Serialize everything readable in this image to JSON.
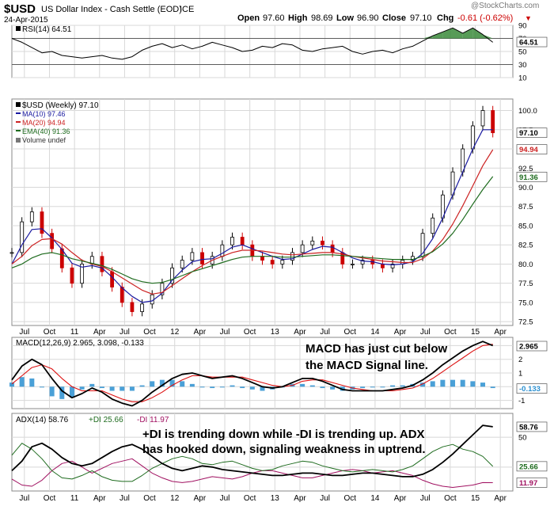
{
  "header": {
    "symbol": "$USD",
    "name": "US Dollar Index - Cash Settle (EOD)",
    "exchange": "ICE",
    "date": "24-Apr-2015",
    "watermark": "@StockCharts.com",
    "ohlc": {
      "open_label": "Open",
      "open": "97.60",
      "high_label": "High",
      "high": "98.69",
      "low_label": "Low",
      "low": "96.90",
      "close_label": "Close",
      "close": "97.10",
      "chg_label": "Chg",
      "chg": "-0.61 (-0.62%)",
      "chg_marker": "▼"
    }
  },
  "colors": {
    "price_up": "#000000",
    "price_down": "#cc0000",
    "ma10": "#1a1aa0",
    "ma20": "#cc2222",
    "ema40": "#1e6b1e",
    "macd": "#000000",
    "signal": "#dd1111",
    "histogram": "#2a8fd0",
    "rsi_fill": "#3a8a3a",
    "adx": "#000000",
    "plus_di": "#1e6b1e",
    "minus_di": "#a01060",
    "grid": "#d8d8d8",
    "annotation": "#000000"
  },
  "chart_data": [
    {
      "type": "line",
      "panel": "rsi",
      "legend": "RSI(14) 64.51",
      "y_ticks": [
        "90",
        "70",
        "50",
        "30",
        "10"
      ],
      "last_value_label": "64.51",
      "ylim": [
        10,
        90
      ],
      "overbought": 70,
      "oversold": 30,
      "x": [
        0,
        4,
        8,
        12,
        16,
        20,
        24,
        28,
        32,
        36,
        40,
        44,
        48,
        52,
        56,
        60,
        64,
        68,
        72,
        76,
        80,
        84,
        88,
        92,
        96,
        100,
        104,
        108,
        112,
        116,
        120,
        124,
        128,
        132,
        136,
        140,
        144,
        148,
        152,
        156,
        160,
        164,
        168,
        172,
        176,
        180,
        184,
        188,
        192
      ],
      "series": [
        {
          "values": [
            70,
            64,
            56,
            48,
            50,
            44,
            42,
            40,
            42,
            44,
            40,
            38,
            42,
            52,
            58,
            62,
            56,
            60,
            54,
            58,
            64,
            60,
            56,
            50,
            52,
            58,
            56,
            62,
            60,
            52,
            50,
            54,
            56,
            58,
            50,
            46,
            50,
            52,
            48,
            54,
            58,
            66,
            74,
            80,
            86,
            78,
            86,
            76,
            64
          ]
        }
      ]
    },
    {
      "type": "line",
      "panel": "price",
      "legend": {
        "title": "$USD (Weekly) 97.10",
        "items": [
          {
            "name": "MA(10) 97.46"
          },
          {
            "name": "MA(20) 94.94"
          },
          {
            "name": "EMA(40) 91.36"
          },
          {
            "name": "Volume undef"
          }
        ]
      },
      "y_ticks": [
        "100.0",
        "97.5",
        "95.0",
        "92.5",
        "90.0",
        "87.5",
        "85.0",
        "82.5",
        "80.0",
        "77.5",
        "75.0",
        "72.5"
      ],
      "badges": [
        "97.10",
        "94.94",
        "91.36"
      ],
      "ylim": [
        72.0,
        101.5
      ],
      "x": [
        0,
        4,
        8,
        12,
        16,
        20,
        24,
        28,
        32,
        36,
        40,
        44,
        48,
        52,
        56,
        60,
        64,
        68,
        72,
        76,
        80,
        84,
        88,
        92,
        96,
        100,
        104,
        108,
        112,
        116,
        120,
        124,
        128,
        132,
        136,
        140,
        144,
        148,
        152,
        156,
        160,
        164,
        168,
        172,
        176,
        180,
        184,
        188,
        192
      ],
      "series": [
        {
          "name": "$USD",
          "values": [
            81.5,
            85.5,
            86.8,
            84.0,
            82.0,
            79.5,
            77.5,
            80.0,
            81.0,
            79.0,
            77.0,
            75.0,
            73.8,
            74.8,
            76.0,
            77.5,
            79.5,
            80.5,
            81.5,
            80.0,
            81.0,
            82.5,
            83.5,
            82.5,
            81.0,
            80.5,
            80.0,
            80.5,
            81.5,
            82.5,
            83.0,
            82.5,
            81.5,
            80.0,
            80.0,
            80.5,
            80.0,
            79.5,
            80.0,
            80.5,
            81.0,
            84.0,
            86.0,
            89.0,
            92.0,
            95.0,
            98.0,
            100.0,
            97.1
          ]
        },
        {
          "name": "MA(10)",
          "values": [
            80.0,
            82.5,
            84.5,
            84.6,
            83.4,
            81.9,
            80.1,
            79.6,
            79.8,
            79.5,
            78.3,
            76.9,
            75.8,
            75.0,
            75.2,
            76.2,
            77.9,
            79.2,
            80.3,
            80.6,
            80.7,
            81.4,
            82.2,
            82.5,
            82.0,
            81.5,
            81.0,
            80.6,
            80.7,
            81.3,
            81.9,
            82.3,
            82.2,
            81.5,
            80.8,
            80.4,
            80.3,
            80.0,
            79.9,
            80.0,
            80.3,
            81.4,
            83.3,
            86.0,
            89.0,
            92.0,
            95.0,
            97.5,
            97.5
          ]
        },
        {
          "name": "MA(20)",
          "values": [
            80.0,
            81.0,
            82.4,
            83.2,
            83.3,
            82.6,
            81.5,
            80.5,
            80.0,
            79.7,
            79.0,
            78.2,
            77.4,
            76.6,
            76.1,
            76.3,
            77.2,
            78.1,
            79.0,
            79.8,
            80.5,
            81.0,
            81.5,
            81.8,
            81.8,
            81.7,
            81.5,
            81.3,
            81.2,
            81.3,
            81.4,
            81.5,
            81.5,
            81.3,
            81.0,
            80.8,
            80.6,
            80.4,
            80.3,
            80.2,
            80.2,
            80.7,
            81.7,
            83.2,
            85.2,
            87.6,
            90.2,
            92.8,
            94.9
          ]
        },
        {
          "name": "EMA(40)",
          "values": [
            79.5,
            80.0,
            80.8,
            81.3,
            81.5,
            81.2,
            80.7,
            80.4,
            80.1,
            79.8,
            79.3,
            78.7,
            78.1,
            77.7,
            77.5,
            77.6,
            78.0,
            78.5,
            79.0,
            79.4,
            79.8,
            80.2,
            80.6,
            80.9,
            81.0,
            81.0,
            81.0,
            80.9,
            80.9,
            81.0,
            81.1,
            81.2,
            81.2,
            81.1,
            81.0,
            80.9,
            80.8,
            80.7,
            80.6,
            80.6,
            80.6,
            81.0,
            81.6,
            82.6,
            84.0,
            85.8,
            87.8,
            89.7,
            91.4
          ]
        }
      ]
    },
    {
      "type": "line",
      "panel": "macd",
      "legend": "MACD(12,26,9) 2.965, 3.098, -0.133",
      "y_ticks": [
        "3",
        "2",
        "1",
        "0",
        "-1"
      ],
      "badges": [
        "2.965",
        "-0.133"
      ],
      "ylim": [
        -1.6,
        3.6
      ],
      "x": [
        0,
        4,
        8,
        12,
        16,
        20,
        24,
        28,
        32,
        36,
        40,
        44,
        48,
        52,
        56,
        60,
        64,
        68,
        72,
        76,
        80,
        84,
        88,
        92,
        96,
        100,
        104,
        108,
        112,
        116,
        120,
        124,
        128,
        132,
        136,
        140,
        144,
        148,
        152,
        156,
        160,
        164,
        168,
        172,
        176,
        180,
        184,
        188,
        192
      ],
      "series": [
        {
          "name": "MACD",
          "values": [
            0.5,
            1.5,
            2.0,
            1.6,
            0.6,
            -0.3,
            -0.8,
            -0.5,
            -0.1,
            -0.4,
            -0.9,
            -1.2,
            -1.4,
            -1.0,
            -0.4,
            0.1,
            0.6,
            0.9,
            1.0,
            0.8,
            0.6,
            0.7,
            0.8,
            0.6,
            0.3,
            0.0,
            -0.1,
            0.0,
            0.3,
            0.6,
            0.6,
            0.4,
            0.1,
            -0.2,
            -0.3,
            -0.3,
            -0.3,
            -0.3,
            -0.2,
            -0.1,
            0.1,
            0.5,
            1.0,
            1.6,
            2.1,
            2.6,
            3.0,
            3.3,
            3.0
          ]
        },
        {
          "name": "Signal",
          "values": [
            0.2,
            0.8,
            1.4,
            1.6,
            1.3,
            0.6,
            0.0,
            -0.3,
            -0.3,
            -0.3,
            -0.6,
            -0.9,
            -1.1,
            -1.1,
            -0.8,
            -0.4,
            0.1,
            0.5,
            0.8,
            0.8,
            0.7,
            0.7,
            0.7,
            0.7,
            0.5,
            0.3,
            0.1,
            0.0,
            0.1,
            0.4,
            0.5,
            0.5,
            0.3,
            0.1,
            -0.1,
            -0.2,
            -0.3,
            -0.3,
            -0.3,
            -0.2,
            -0.1,
            0.2,
            0.6,
            1.1,
            1.6,
            2.1,
            2.6,
            3.0,
            3.1
          ]
        },
        {
          "name": "Histogram",
          "values": [
            0.3,
            0.7,
            0.6,
            0.0,
            -0.7,
            -0.9,
            -0.8,
            -0.2,
            0.2,
            -0.1,
            -0.3,
            -0.3,
            -0.3,
            0.1,
            0.4,
            0.5,
            0.5,
            0.4,
            0.2,
            0.0,
            -0.1,
            0.0,
            0.1,
            -0.1,
            -0.2,
            -0.3,
            -0.2,
            0.0,
            0.2,
            0.2,
            0.1,
            -0.1,
            -0.2,
            -0.3,
            -0.2,
            -0.1,
            0.0,
            0.0,
            0.1,
            0.1,
            0.2,
            0.3,
            0.4,
            0.5,
            0.5,
            0.5,
            0.4,
            0.3,
            -0.1
          ]
        }
      ],
      "annotation": "MACD has just cut below\nthe MACD Signal line."
    },
    {
      "type": "line",
      "panel": "adx",
      "legend": {
        "adx": "ADX(14) 58.76",
        "plus_di": "+DI 25.66",
        "minus_di": "-DI 11.97"
      },
      "y_ticks": [
        "50",
        "25"
      ],
      "badges": [
        "58.76",
        "25.66",
        "11.97"
      ],
      "ylim": [
        5,
        70
      ],
      "x": [
        0,
        4,
        8,
        12,
        16,
        20,
        24,
        28,
        32,
        36,
        40,
        44,
        48,
        52,
        56,
        60,
        64,
        68,
        72,
        76,
        80,
        84,
        88,
        92,
        96,
        100,
        104,
        108,
        112,
        116,
        120,
        124,
        128,
        132,
        136,
        140,
        144,
        148,
        152,
        156,
        160,
        164,
        168,
        172,
        176,
        180,
        184,
        188,
        192
      ],
      "series": [
        {
          "name": "ADX",
          "values": [
            22,
            30,
            42,
            45,
            40,
            33,
            28,
            26,
            28,
            33,
            38,
            42,
            44,
            40,
            34,
            28,
            24,
            22,
            24,
            26,
            25,
            23,
            22,
            21,
            20,
            19,
            18,
            18,
            19,
            20,
            20,
            19,
            18,
            18,
            19,
            20,
            20,
            19,
            18,
            17,
            17,
            19,
            23,
            29,
            36,
            44,
            52,
            60,
            58.76
          ]
        },
        {
          "name": "+DI",
          "values": [
            35,
            45,
            40,
            32,
            22,
            16,
            15,
            18,
            22,
            17,
            14,
            13,
            13,
            18,
            24,
            28,
            32,
            34,
            32,
            28,
            27,
            29,
            30,
            27,
            24,
            22,
            23,
            26,
            28,
            30,
            29,
            26,
            24,
            22,
            21,
            22,
            23,
            22,
            21,
            23,
            26,
            32,
            38,
            42,
            44,
            40,
            38,
            34,
            25.66
          ]
        },
        {
          "name": "-DI",
          "values": [
            15,
            10,
            9,
            14,
            22,
            28,
            30,
            25,
            20,
            24,
            28,
            30,
            32,
            26,
            20,
            16,
            13,
            12,
            13,
            15,
            17,
            16,
            15,
            17,
            20,
            22,
            22,
            20,
            18,
            16,
            16,
            18,
            20,
            22,
            23,
            22,
            20,
            21,
            22,
            20,
            18,
            14,
            11,
            9,
            8,
            9,
            10,
            12,
            11.97
          ]
        }
      ],
      "annotation": "+DI is trending down while -DI is trending up. ADX\nhas hooked down, signaling weakness in uptrend."
    }
  ],
  "x_axis": {
    "labels": [
      "Jul",
      "Oct",
      "11",
      "Apr",
      "Jul",
      "Oct",
      "12",
      "Apr",
      "Jul",
      "Oct",
      "13",
      "Apr",
      "Jul",
      "Oct",
      "14",
      "Apr",
      "Jul",
      "Oct",
      "15",
      "Apr"
    ],
    "label_positions": [
      6,
      18,
      30,
      42,
      54,
      66,
      78,
      90,
      102,
      114,
      126,
      138,
      150,
      162,
      174,
      186,
      198,
      210,
      222,
      234
    ],
    "position_scale": [
      0,
      240
    ]
  }
}
